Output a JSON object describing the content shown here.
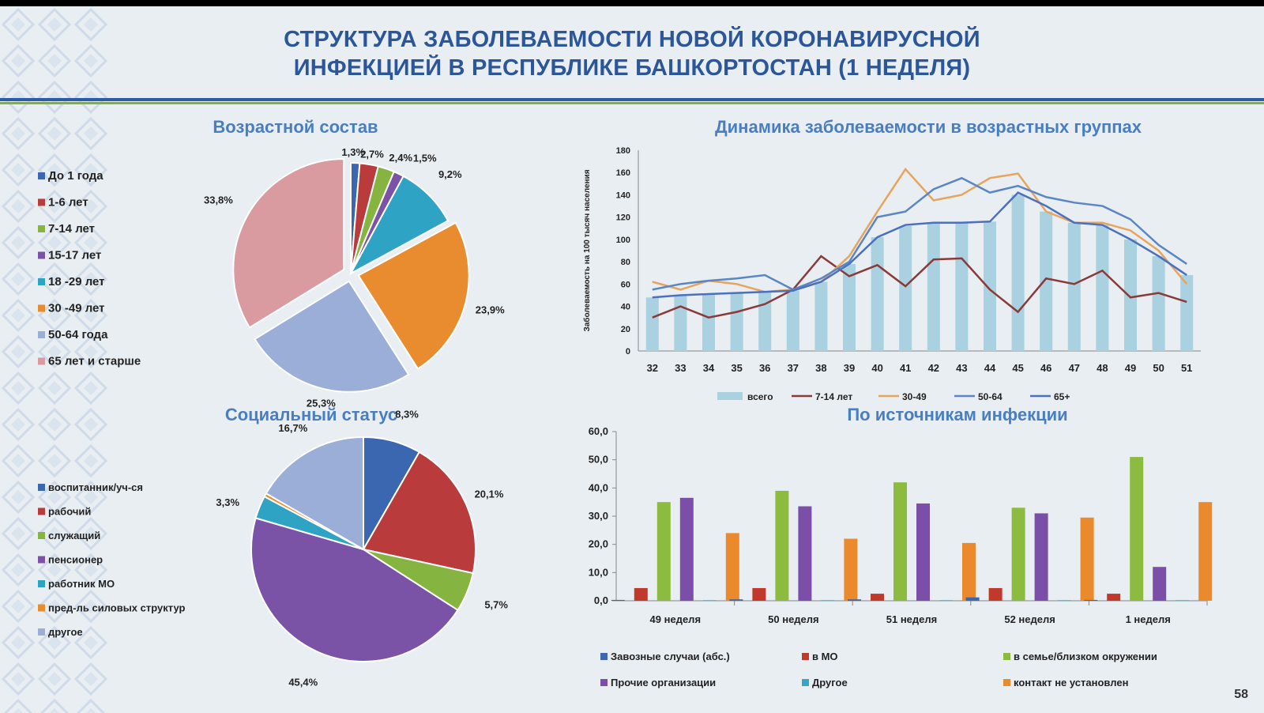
{
  "title_line1": "СТРУКТУРА ЗАБОЛЕВАЕМОСТИ НОВОЙ КОРОНАВИРУСНОЙ",
  "title_line2": "ИНФЕКЦИЕЙ В РЕСПУБЛИКЕ БАШКОРТОСТАН (1 НЕДЕЛЯ)",
  "page_number": "58",
  "chart_data": [
    {
      "type": "pie",
      "title": "Возрастной состав",
      "categories": [
        "До 1 года",
        "1-6 лет",
        "7-14 лет",
        "15-17 лет",
        "18 -29 лет",
        "30 -49 лет",
        "50-64 года",
        "65 лет и старше"
      ],
      "values": [
        1.3,
        2.7,
        2.4,
        1.5,
        9.2,
        23.9,
        25.3,
        33.8
      ],
      "labels": [
        "1,3%",
        "2,7%",
        "2,4%",
        "1,5%",
        "9,2%",
        "23,9%",
        "25,3%",
        "33,8%"
      ],
      "colors": [
        "#3a67b0",
        "#b93b3b",
        "#86b440",
        "#7a52a6",
        "#2fa3c4",
        "#e98c2f",
        "#9aaed8",
        "#d99ba0"
      ],
      "legend": "left"
    },
    {
      "type": "pie",
      "title": "Социальный статус",
      "categories": [
        "воспитанник/уч-ся",
        "рабочий",
        "служащий",
        "пенсионер",
        "работник МО",
        "пред-ль силовых структур",
        "другое"
      ],
      "values": [
        8.3,
        20.1,
        5.7,
        45.4,
        3.3,
        0.5,
        16.7
      ],
      "labels": [
        "8,3%",
        "20,1%",
        "5,7%",
        "45,4%",
        "3,3%",
        "",
        "16,7%"
      ],
      "colors": [
        "#3a67b0",
        "#b93b3b",
        "#86b440",
        "#7a52a6",
        "#2fa3c4",
        "#e98c2f",
        "#9aaed8"
      ],
      "legend": "left"
    },
    {
      "type": "line",
      "title": "Динамика заболеваемости в возрастных группах",
      "ylabel": "Заболеваемость на 100 тысяч населения",
      "x": [
        "32",
        "33",
        "34",
        "35",
        "36",
        "37",
        "38",
        "39",
        "40",
        "41",
        "42",
        "43",
        "44",
        "45",
        "46",
        "47",
        "48",
        "49",
        "50",
        "51"
      ],
      "ylim": [
        0,
        180
      ],
      "yticks": [
        "0",
        "20",
        "40",
        "60",
        "80",
        "100",
        "120",
        "140",
        "160",
        "180"
      ],
      "series": [
        {
          "name": "всего",
          "type": "bar",
          "color": "#a9d1df",
          "values": [
            48,
            50,
            51,
            52,
            53,
            54,
            62,
            78,
            102,
            112,
            115,
            115,
            116,
            140,
            125,
            115,
            113,
            100,
            85,
            68
          ]
        },
        {
          "name": "7-14 лет",
          "color": "#8b3a3a",
          "values": [
            30,
            40,
            30,
            35,
            42,
            55,
            85,
            67,
            77,
            58,
            82,
            83,
            55,
            35,
            65,
            60,
            72,
            48,
            52,
            44
          ]
        },
        {
          "name": "30-49",
          "color": "#e8a45c",
          "values": [
            62,
            55,
            63,
            60,
            53,
            55,
            62,
            85,
            125,
            163,
            135,
            140,
            155,
            159,
            125,
            115,
            115,
            108,
            90,
            60
          ]
        },
        {
          "name": "50-64",
          "color": "#5a86c6",
          "values": [
            55,
            60,
            63,
            65,
            68,
            55,
            65,
            80,
            120,
            125,
            145,
            155,
            142,
            148,
            138,
            133,
            130,
            118,
            95,
            78
          ]
        },
        {
          "name": "65+",
          "color": "#4a70bf",
          "values": [
            48,
            50,
            51,
            52,
            53,
            54,
            62,
            78,
            102,
            113,
            115,
            115,
            116,
            142,
            130,
            115,
            113,
            100,
            85,
            68
          ]
        }
      ],
      "legend": "bottom"
    },
    {
      "type": "bar",
      "title": "По источникам инфекции",
      "categories": [
        "49 неделя",
        "50 неделя",
        "51 неделя",
        "52 неделя",
        "1 неделя"
      ],
      "ylim": [
        0,
        60
      ],
      "yticks": [
        "0,0",
        "10,0",
        "20,0",
        "30,0",
        "40,0",
        "50,0",
        "60,0"
      ],
      "series": [
        {
          "name": "Завозные случаи (абс.)",
          "color": "#3a67b0",
          "values": [
            0.3,
            0.5,
            0.5,
            1.2,
            0.3
          ]
        },
        {
          "name": "в МО",
          "color": "#c0392b",
          "values": [
            4.5,
            4.5,
            2.5,
            4.5,
            2.5
          ]
        },
        {
          "name": "в семье/близком окружении",
          "color": "#8cbc3f",
          "values": [
            35,
            39,
            42,
            33,
            51
          ]
        },
        {
          "name": "Прочие организации",
          "color": "#7b4fa8",
          "values": [
            36.5,
            33.5,
            34.5,
            31,
            12
          ]
        },
        {
          "name": "Другое",
          "color": "#34a7c9",
          "values": [
            0.2,
            0.2,
            0.2,
            0.2,
            0.2
          ]
        },
        {
          "name": "контакт не установлен",
          "color": "#ea8a2c",
          "values": [
            24,
            22,
            20.5,
            29.5,
            35
          ]
        }
      ],
      "legend": "bottom"
    }
  ]
}
